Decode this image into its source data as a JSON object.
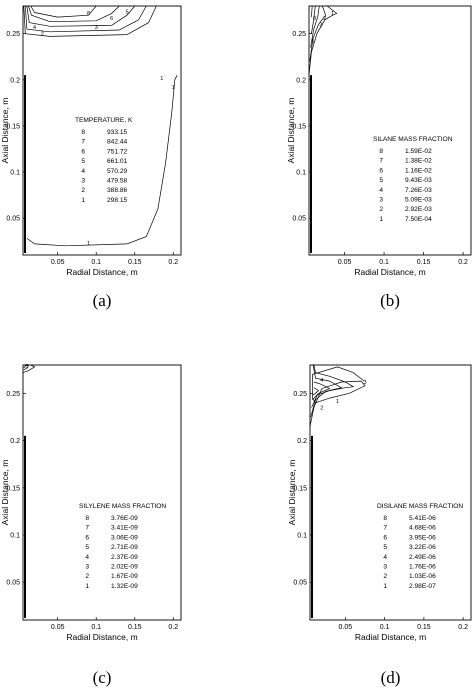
{
  "chart_data": [
    {
      "type": "contour",
      "caption": "(a)",
      "xlabel": "Radial Distance, m",
      "ylabel": "Axial Distance, m",
      "xlim": [
        0.005,
        0.21
      ],
      "ylim": [
        0.01,
        0.28
      ],
      "xticks": [
        "0.05",
        "0.1",
        "0.15",
        "0.2"
      ],
      "yticks": [
        "0.05",
        "0.1",
        "0.15",
        "0.2",
        "0.25"
      ],
      "legend_title": "TEMPERATURE, K",
      "levels": [
        {
          "level": "8",
          "value": "933.15"
        },
        {
          "level": "7",
          "value": "842.44"
        },
        {
          "level": "6",
          "value": "751.72"
        },
        {
          "level": "5",
          "value": "661.01"
        },
        {
          "level": "4",
          "value": "570.29"
        },
        {
          "level": "3",
          "value": "479.58"
        },
        {
          "level": "2",
          "value": "388.86"
        },
        {
          "level": "1",
          "value": "298.15"
        }
      ],
      "contour_labels": [
        "8",
        "6",
        "5",
        "3",
        "4",
        "2",
        "1",
        "1",
        "1"
      ]
    },
    {
      "type": "contour",
      "caption": "(b)",
      "xlabel": "Radial Distance, m",
      "ylabel": "Axial Distance, m",
      "xlim": [
        0.005,
        0.21
      ],
      "ylim": [
        0.01,
        0.28
      ],
      "xticks": [
        "0.05",
        "0.1",
        "0.15",
        "0.2"
      ],
      "yticks": [
        "0.05",
        "0.1",
        "0.15",
        "0.2",
        "0.25"
      ],
      "legend_title": "SILANE  MASS  FRACTION",
      "levels": [
        {
          "level": "8",
          "value": "1.59E-02"
        },
        {
          "level": "7",
          "value": "1.38E-02"
        },
        {
          "level": "6",
          "value": "1.16E-02"
        },
        {
          "level": "5",
          "value": "9.43E-03"
        },
        {
          "level": "4",
          "value": "7.26E-03"
        },
        {
          "level": "3",
          "value": "5.09E-03"
        },
        {
          "level": "2",
          "value": "2.92E-03"
        },
        {
          "level": "1",
          "value": "7.50E-04"
        }
      ],
      "contour_labels": [
        "1",
        "2",
        "3",
        "8",
        "5"
      ]
    },
    {
      "type": "contour",
      "caption": "(c)",
      "xlabel": "Radial Distance, m",
      "ylabel": "Axial Distance, m",
      "xlim": [
        0.005,
        0.21
      ],
      "ylim": [
        0.01,
        0.28
      ],
      "xticks": [
        "0.05",
        "0.1",
        "0.15",
        "0.2"
      ],
      "yticks": [
        "0.05",
        "0.1",
        "0.15",
        "0.2",
        "0.25"
      ],
      "legend_title": "SILYLENE  MASS  FRACTION",
      "levels": [
        {
          "level": "8",
          "value": "3.76E-09"
        },
        {
          "level": "7",
          "value": "3.41E-09"
        },
        {
          "level": "6",
          "value": "3.06E-09"
        },
        {
          "level": "5",
          "value": "2.71E-09"
        },
        {
          "level": "4",
          "value": "2.37E-09"
        },
        {
          "level": "3",
          "value": "2.02E-09"
        },
        {
          "level": "2",
          "value": "1.67E-09"
        },
        {
          "level": "1",
          "value": "1.32E-09"
        }
      ],
      "contour_labels": [
        "5"
      ]
    },
    {
      "type": "contour",
      "caption": "(d)",
      "xlabel": "Radial Distance, m",
      "ylabel": "Axial Distance, m",
      "xlim": [
        0.005,
        0.21
      ],
      "ylim": [
        0.01,
        0.28
      ],
      "xticks": [
        "0.05",
        "0.1",
        "0.15",
        "0.2"
      ],
      "yticks": [
        "0.05",
        "0.1",
        "0.15",
        "0.2",
        "0.25"
      ],
      "legend_title": "DISILANE  MASS  FRACTION",
      "levels": [
        {
          "level": "8",
          "value": "5.41E-06"
        },
        {
          "level": "7",
          "value": "4.68E-06"
        },
        {
          "level": "6",
          "value": "3.95E-06"
        },
        {
          "level": "5",
          "value": "3.22E-06"
        },
        {
          "level": "4",
          "value": "2.49E-06"
        },
        {
          "level": "3",
          "value": "1.76E-06"
        },
        {
          "level": "2",
          "value": "1.03E-06"
        },
        {
          "level": "1",
          "value": "2.98E-07"
        }
      ],
      "contour_labels": [
        "2",
        "1",
        "4",
        "3"
      ]
    }
  ]
}
